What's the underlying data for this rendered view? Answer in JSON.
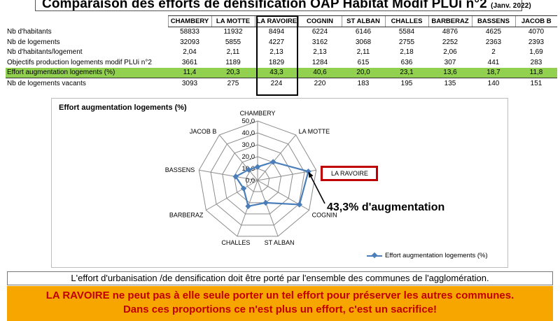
{
  "header": {
    "title": "Comparaison des efforts de densification OAP Habitat Modif PLUi n°2",
    "date": "(Janv. 2022)"
  },
  "table": {
    "columns": [
      "CHAMBERY",
      "LA MOTTE",
      "LA RAVOIRE",
      "COGNIN",
      "ST ALBAN",
      "CHALLES",
      "BARBERAZ",
      "BASSENS",
      "JACOB B"
    ],
    "rows": [
      {
        "label": "Nb d'habitants",
        "values": [
          "58833",
          "11932",
          "8494",
          "6224",
          "6146",
          "5584",
          "4876",
          "4625",
          "4070"
        ]
      },
      {
        "label": "Nb de logements",
        "values": [
          "32093",
          "5855",
          "4227",
          "3162",
          "3068",
          "2755",
          "2252",
          "2363",
          "2393"
        ]
      },
      {
        "label": "Nb d'habitants/logement",
        "values": [
          "2,04",
          "2,11",
          "2,13",
          "2,13",
          "2,11",
          "2,18",
          "2,06",
          "2",
          "1,69"
        ]
      },
      {
        "label": "Objectifs production logements modif PLUi n°2",
        "values": [
          "3661",
          "1189",
          "1829",
          "1284",
          "615",
          "636",
          "307",
          "441",
          "283"
        ]
      },
      {
        "label": "Effort augmentation logements  (%)",
        "values": [
          "11,4",
          "20,3",
          "43,3",
          "40,6",
          "20,0",
          "23,1",
          "13,6",
          "18,7",
          "11,8"
        ],
        "highlight": true
      },
      {
        "label": "Nb de logements vacants",
        "values": [
          "3093",
          "275",
          "224",
          "220",
          "183",
          "195",
          "135",
          "140",
          "151"
        ]
      }
    ]
  },
  "chart_data": {
    "type": "radar",
    "title": "Effort augmentation logements  (%)",
    "categories": [
      "CHAMBERY",
      "LA MOTTE",
      "LA RAVOIRE",
      "COGNIN",
      "ST ALBAN",
      "CHALLES",
      "BARBERAZ",
      "BASSENS",
      "JACOB B"
    ],
    "series": [
      {
        "name": "Effort augmentation logements  (%)",
        "values": [
          11.4,
          20.3,
          43.3,
          40.6,
          20.0,
          23.1,
          13.6,
          18.7,
          11.8
        ],
        "color": "#4a7ebb"
      }
    ],
    "rlim": [
      0,
      50
    ],
    "ticks": [
      "0,0",
      "10,0",
      "20,0",
      "30,0",
      "40,0",
      "50,0"
    ],
    "annotations": {
      "box_label": "LA RAVOIRE",
      "callout": "43,3% d'augmentation"
    },
    "legend_position": "bottom-right"
  },
  "footer": {
    "caption": "L'effort d'urbanisation /de densification doit être porté par l'ensemble des communes de l'agglomération.",
    "banner_line1": "LA RAVOIRE ne peut pas à elle seule  porter un tel effort pour préserver les autres communes.",
    "banner_line2": "Dans ces proportions ce n'est plus un effort, c'est un sacrifice!"
  },
  "colors": {
    "highlight_row": "#92d050",
    "series": "#4a7ebb",
    "callout_border": "#c00000",
    "banner_bg": "#f7a600",
    "banner_text": "#c00000"
  }
}
